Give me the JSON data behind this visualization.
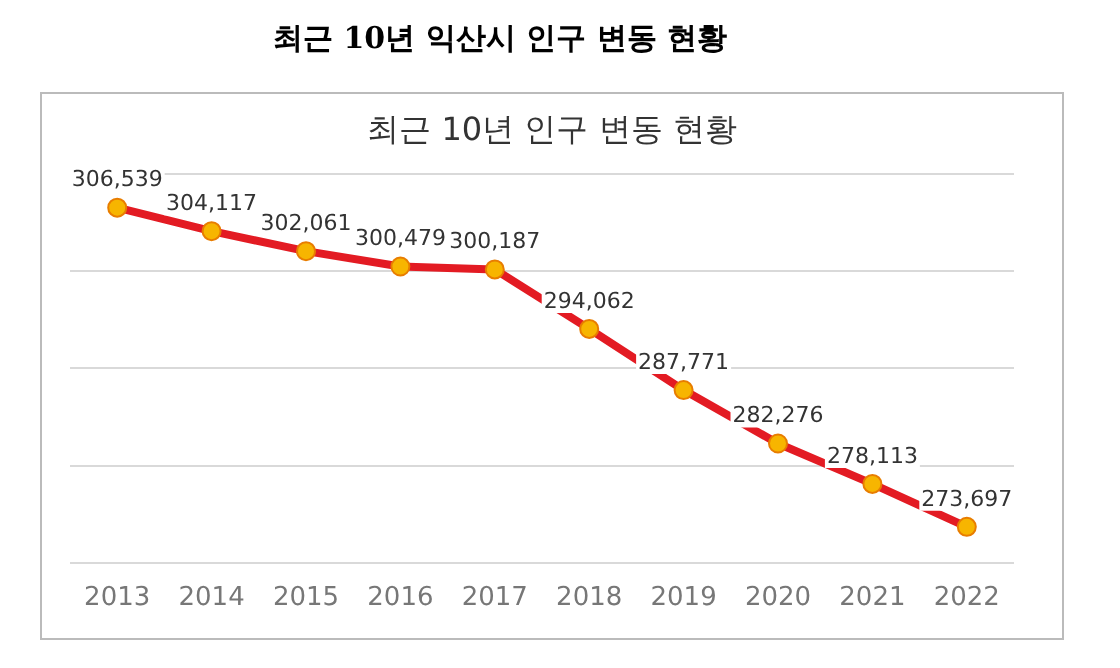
{
  "chart_data": {
    "type": "line",
    "title": "최근 10년 익산시 인구 변동 현황",
    "subtitle": "최근 10년 인구 변동 현황",
    "categories": [
      "2013",
      "2014",
      "2015",
      "2016",
      "2017",
      "2018",
      "2019",
      "2020",
      "2021",
      "2022"
    ],
    "series": [
      {
        "color": "#e31b23",
        "values": [
          306539,
          304117,
          302061,
          300479,
          300187,
          294062,
          287771,
          282276,
          278113,
          273697
        ],
        "value_labels": [
          "306,539",
          "304,117",
          "302,061",
          "300,479",
          "300,187",
          "294,062",
          "287,771",
          "282,276",
          "278,113",
          "273,697"
        ]
      }
    ],
    "tick_labels": "x",
    "grid": "y",
    "marker": "circle",
    "line_style": "solid",
    "legend": false
  }
}
